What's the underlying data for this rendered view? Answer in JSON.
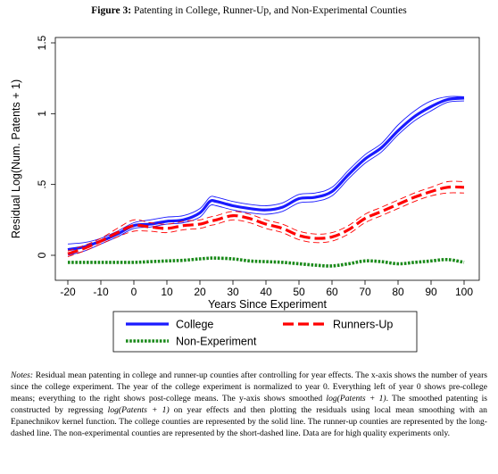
{
  "figure": {
    "label": "Figure 3:",
    "title": "Patenting in College, Runner-Up, and Non-Experimental Counties"
  },
  "colors": {
    "college": "#1a1aff",
    "runners_up": "#ff0000",
    "non_experiment": "#1a8a1a",
    "axis": "#000000",
    "plot_bg": "#ffffff"
  },
  "chart_data": {
    "type": "line",
    "xlabel": "Years Since Experiment",
    "ylabel": "Residual Log(Num. Patents + 1)",
    "xlim": [
      -20,
      100
    ],
    "ylim": [
      -0.06,
      1.5
    ],
    "x_ticks": [
      -20,
      -10,
      0,
      10,
      20,
      30,
      40,
      50,
      60,
      70,
      80,
      90,
      100
    ],
    "x_tick_labels": [
      "-20",
      "-10",
      "0",
      "10",
      "20",
      "30",
      "40",
      "50",
      "60",
      "70",
      "80",
      "90",
      "100"
    ],
    "y_ticks": [
      0,
      0.5,
      1,
      1.5
    ],
    "y_tick_labels": [
      "0",
      ".5",
      "1",
      "1.5"
    ],
    "grid": false,
    "legend_position": "bottom",
    "x": [
      -20,
      -15,
      -10,
      -5,
      0,
      5,
      10,
      15,
      20,
      23,
      25,
      30,
      35,
      40,
      45,
      50,
      55,
      60,
      65,
      70,
      75,
      80,
      85,
      90,
      95,
      100
    ],
    "series": [
      {
        "name": "College",
        "style": "solid",
        "values": [
          0.04,
          0.06,
          0.1,
          0.15,
          0.21,
          0.22,
          0.24,
          0.25,
          0.3,
          0.38,
          0.38,
          0.35,
          0.33,
          0.32,
          0.34,
          0.4,
          0.41,
          0.45,
          0.57,
          0.68,
          0.76,
          0.88,
          0.98,
          1.05,
          1.1,
          1.11
        ],
        "ci_upper": [
          0.08,
          0.09,
          0.12,
          0.17,
          0.23,
          0.25,
          0.27,
          0.28,
          0.33,
          0.41,
          0.41,
          0.38,
          0.36,
          0.35,
          0.37,
          0.43,
          0.44,
          0.48,
          0.6,
          0.71,
          0.79,
          0.92,
          1.02,
          1.09,
          1.12,
          1.12
        ],
        "ci_lower": [
          0.0,
          0.03,
          0.08,
          0.13,
          0.19,
          0.2,
          0.22,
          0.23,
          0.27,
          0.35,
          0.35,
          0.32,
          0.3,
          0.29,
          0.31,
          0.37,
          0.38,
          0.42,
          0.54,
          0.65,
          0.73,
          0.85,
          0.95,
          1.02,
          1.08,
          1.09
        ]
      },
      {
        "name": "Runners-Up",
        "style": "long-dash",
        "values": [
          0.01,
          0.05,
          0.1,
          0.16,
          0.21,
          0.2,
          0.19,
          0.21,
          0.22,
          0.24,
          0.25,
          0.28,
          0.26,
          0.22,
          0.19,
          0.14,
          0.12,
          0.13,
          0.18,
          0.26,
          0.31,
          0.36,
          0.41,
          0.45,
          0.48,
          0.48
        ],
        "ci_upper": [
          0.03,
          0.07,
          0.12,
          0.19,
          0.25,
          0.23,
          0.22,
          0.24,
          0.25,
          0.27,
          0.28,
          0.31,
          0.29,
          0.25,
          0.22,
          0.17,
          0.15,
          0.16,
          0.21,
          0.29,
          0.34,
          0.39,
          0.44,
          0.48,
          0.52,
          0.52
        ],
        "ci_lower": [
          -0.01,
          0.03,
          0.08,
          0.13,
          0.17,
          0.17,
          0.16,
          0.18,
          0.19,
          0.21,
          0.22,
          0.25,
          0.23,
          0.19,
          0.16,
          0.11,
          0.09,
          0.1,
          0.15,
          0.23,
          0.28,
          0.33,
          0.38,
          0.42,
          0.44,
          0.44
        ]
      },
      {
        "name": "Non-Experiment",
        "style": "short-dash",
        "values": [
          -0.05,
          -0.05,
          -0.05,
          -0.05,
          -0.05,
          -0.045,
          -0.04,
          -0.035,
          -0.025,
          -0.02,
          -0.02,
          -0.025,
          -0.04,
          -0.045,
          -0.05,
          -0.06,
          -0.07,
          -0.075,
          -0.06,
          -0.04,
          -0.045,
          -0.06,
          -0.05,
          -0.04,
          -0.03,
          -0.05
        ]
      }
    ]
  },
  "notes": {
    "label": "Notes:",
    "text_part1": " Residual mean patenting in college and runner-up counties after controlling for year effects. The x-axis shows the number of years since the college experiment. The year of the college experiment is normalized to year 0. Everything left of year 0 shows pre-college means; everything to the right shows post-college means. The y-axis shows smoothed ",
    "math1": "log(Patents + 1)",
    "text_part2": ". The smoothed patenting is constructed by regressing ",
    "math2": "log(Patents + 1)",
    "text_part3": " on year effects and then plotting the residuals using local mean smoothing with an Epanechnikov kernel function. The college counties are represented by the solid line. The runner-up counties are represented by the long-dashed line. The non-experimental counties are represented by the short-dashed line. Data are for high quality experiments only."
  }
}
